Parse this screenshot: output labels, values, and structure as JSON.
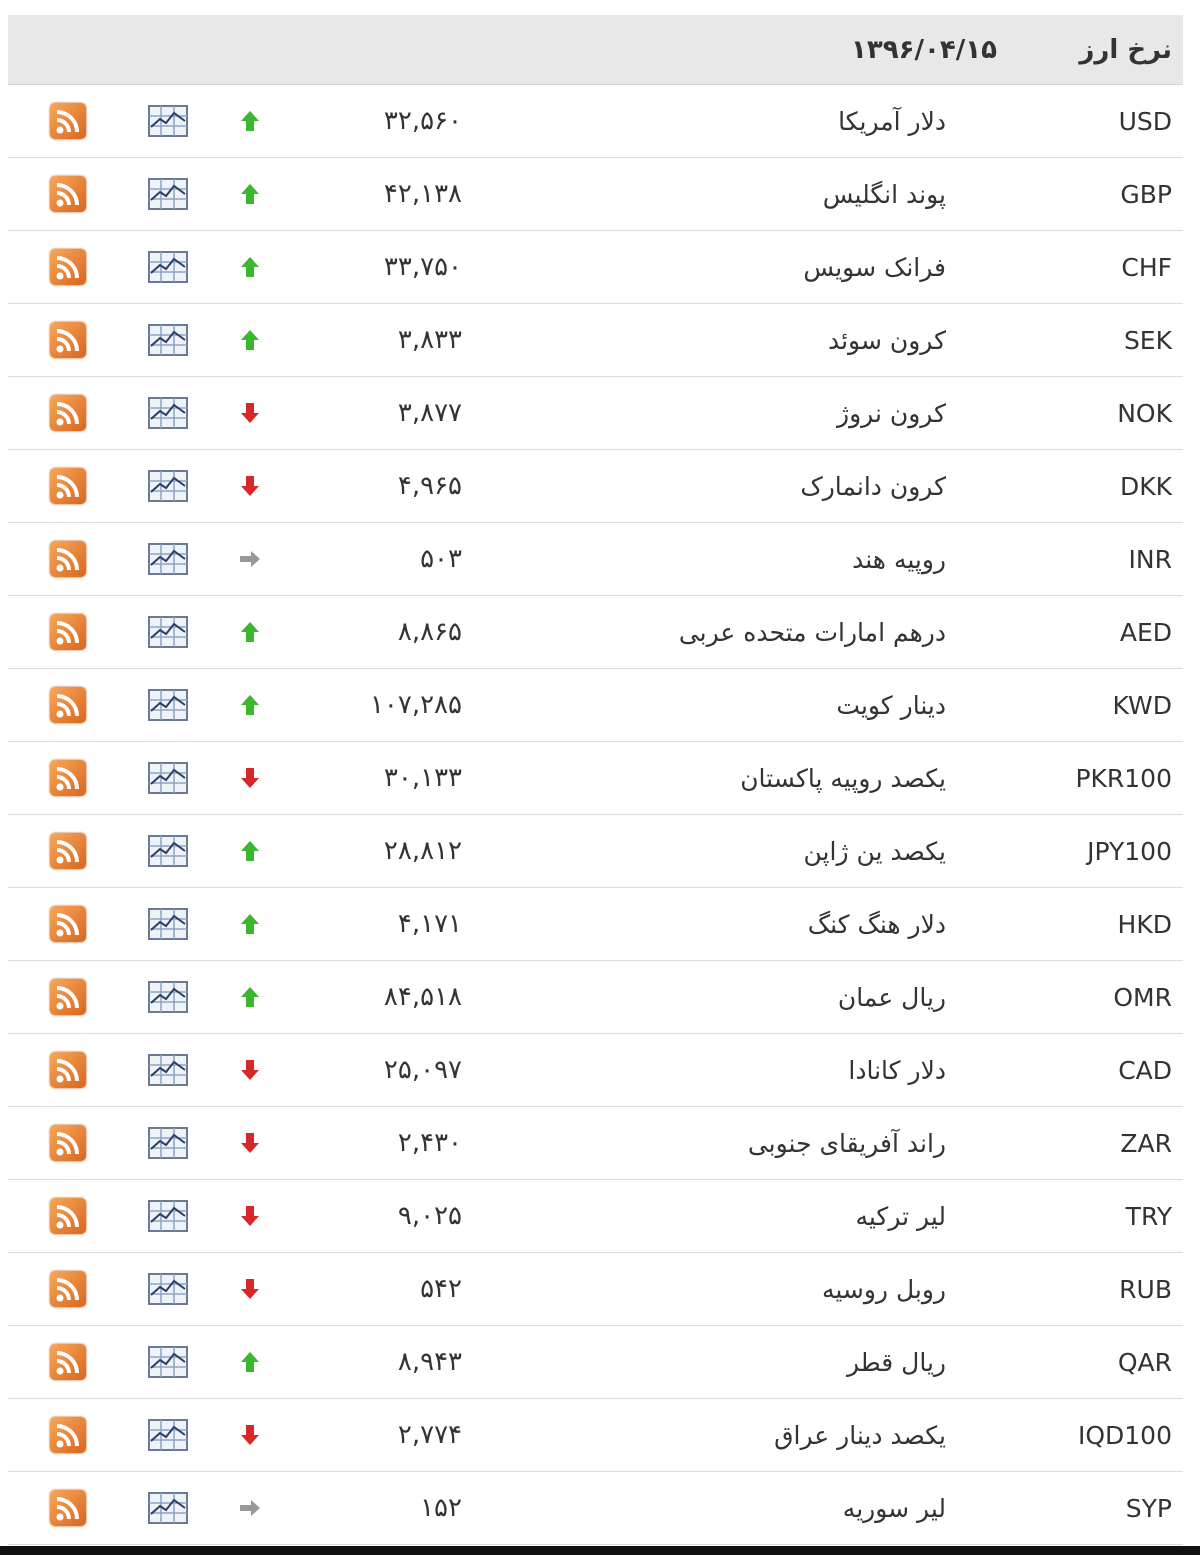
{
  "header": {
    "title": "نرخ ارز",
    "date": "۱۳۹۶/۰۴/۱۵"
  },
  "colors": {
    "up": "#3cb62e",
    "down": "#d62828",
    "neutral": "#999999",
    "rss": "#e07a2f",
    "header_bg": "#e8e8e8"
  },
  "icons": {
    "up": "arrow-up-icon",
    "down": "arrow-down-icon",
    "neutral": "arrow-right-icon",
    "chart": "chart-icon",
    "rss": "rss-icon"
  },
  "rows": [
    {
      "code": "USD",
      "name": "دلار آمریکا",
      "value": "۳۲,۵۶۰",
      "trend": "up"
    },
    {
      "code": "GBP",
      "name": "پوند انگلیس",
      "value": "۴۲,۱۳۸",
      "trend": "up"
    },
    {
      "code": "CHF",
      "name": "فرانک سویس",
      "value": "۳۳,۷۵۰",
      "trend": "up"
    },
    {
      "code": "SEK",
      "name": "کرون سوئد",
      "value": "۳,۸۳۳",
      "trend": "up"
    },
    {
      "code": "NOK",
      "name": "کرون نروژ",
      "value": "۳,۸۷۷",
      "trend": "down"
    },
    {
      "code": "DKK",
      "name": "کرون دانمارک",
      "value": "۴,۹۶۵",
      "trend": "down"
    },
    {
      "code": "INR",
      "name": "روپیه هند",
      "value": "۵۰۳",
      "trend": "neutral"
    },
    {
      "code": "AED",
      "name": "درهم امارات متحده عربی",
      "value": "۸,۸۶۵",
      "trend": "up"
    },
    {
      "code": "KWD",
      "name": "دینار کویت",
      "value": "۱۰۷,۲۸۵",
      "trend": "up"
    },
    {
      "code": "PKR100",
      "name": "یکصد روپیه پاکستان",
      "value": "۳۰,۱۳۳",
      "trend": "down"
    },
    {
      "code": "JPY100",
      "name": "یکصد ین ژاپن",
      "value": "۲۸,۸۱۲",
      "trend": "up"
    },
    {
      "code": "HKD",
      "name": "دلار هنگ کنگ",
      "value": "۴,۱۷۱",
      "trend": "up"
    },
    {
      "code": "OMR",
      "name": "ریال عمان",
      "value": "۸۴,۵۱۸",
      "trend": "up"
    },
    {
      "code": "CAD",
      "name": "دلار کانادا",
      "value": "۲۵,۰۹۷",
      "trend": "down"
    },
    {
      "code": "ZAR",
      "name": "راند آفریقای جنوبی",
      "value": "۲,۴۳۰",
      "trend": "down"
    },
    {
      "code": "TRY",
      "name": "لیر ترکیه",
      "value": "۹,۰۲۵",
      "trend": "down"
    },
    {
      "code": "RUB",
      "name": "روبل روسیه",
      "value": "۵۴۲",
      "trend": "down"
    },
    {
      "code": "QAR",
      "name": "ریال قطر",
      "value": "۸,۹۴۳",
      "trend": "up"
    },
    {
      "code": "IQD100",
      "name": "یکصد دینار عراق",
      "value": "۲,۷۷۴",
      "trend": "down"
    },
    {
      "code": "SYP",
      "name": "لیر سوریه",
      "value": "۱۵۲",
      "trend": "neutral"
    }
  ]
}
